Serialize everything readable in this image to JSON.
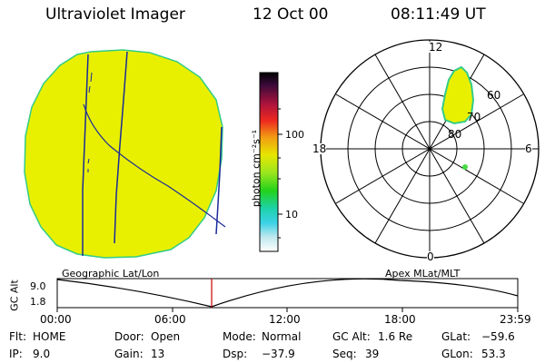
{
  "header": {
    "instrument": "Ultraviolet Imager",
    "date": "12 Oct 00",
    "time": "08:11:49 UT"
  },
  "colorbar": {
    "unit_label": "photon cm⁻²s⁻¹",
    "ticks": [
      "100",
      "10"
    ]
  },
  "polar_plot": {
    "mlt_labels": {
      "top": "12",
      "left": "18",
      "right": "6",
      "bottom": "0"
    },
    "lat_labels": [
      "60",
      "70",
      "80"
    ]
  },
  "timeline": {
    "left_title": "Geographic Lat/Lon",
    "right_title": "Apex MLat/MLT",
    "y_axis_label": "GC Alt",
    "y_ticks": [
      "9.0",
      "1.8"
    ],
    "x_ticks": [
      "00:00",
      "06:00",
      "12:00",
      "18:00",
      "23:59"
    ],
    "marker_time": "08:11"
  },
  "status": {
    "flt_label": "Flt:",
    "flt_value": "HOME",
    "ip_label": "IP:",
    "ip_value": "9.0",
    "door_label": "Door:",
    "door_value": "Open",
    "gain_label": "Gain:",
    "gain_value": "13",
    "mode_label": "Mode:",
    "mode_value": "Normal",
    "dsp_label": "Dsp:",
    "dsp_value": "−37.9",
    "gcalt_label": "GC Alt:",
    "gcalt_value": "1.6 Re",
    "seq_label": "Seq:",
    "seq_value": "39",
    "glat_label": "GLat:",
    "glat_value": "−59.6",
    "glon_label": "GLon:",
    "glon_value": "53.3"
  },
  "colors": {
    "image_fill": "#e8f000",
    "image_edge": "#33cc88",
    "track_line": "#1a2a99",
    "marker_line": "#cc0000"
  }
}
